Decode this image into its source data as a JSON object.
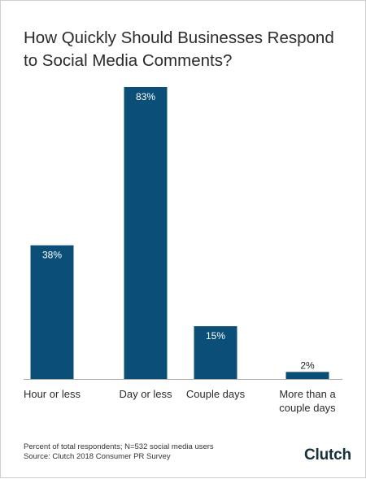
{
  "title_lines": [
    "How Quickly Should Businesses Respond",
    "to Social Media Comments?"
  ],
  "footnote": {
    "line1": "Percent of total respondents; N=532 social media users",
    "line2": "Source: Clutch 2018 Consumer PR Survey"
  },
  "logo": {
    "text": "Clutch",
    "accent_color": "#ef4335"
  },
  "colors": {
    "bar": "#0b4f79",
    "axis": "#aaaaaa",
    "title": "#2b2b2b"
  },
  "chart_data": {
    "type": "bar",
    "title": "How Quickly Should Businesses Respond to Social Media Comments?",
    "categories": [
      [
        "Hour or less"
      ],
      [
        "Day or less"
      ],
      [
        "Couple days"
      ],
      [
        "More than a",
        "couple days"
      ]
    ],
    "values": [
      38,
      83,
      15,
      2
    ],
    "value_labels": [
      "38%",
      "83%",
      "15%",
      "2%"
    ],
    "unit": "%",
    "ylim": [
      0,
      100
    ],
    "grid": false,
    "legend": "none"
  }
}
